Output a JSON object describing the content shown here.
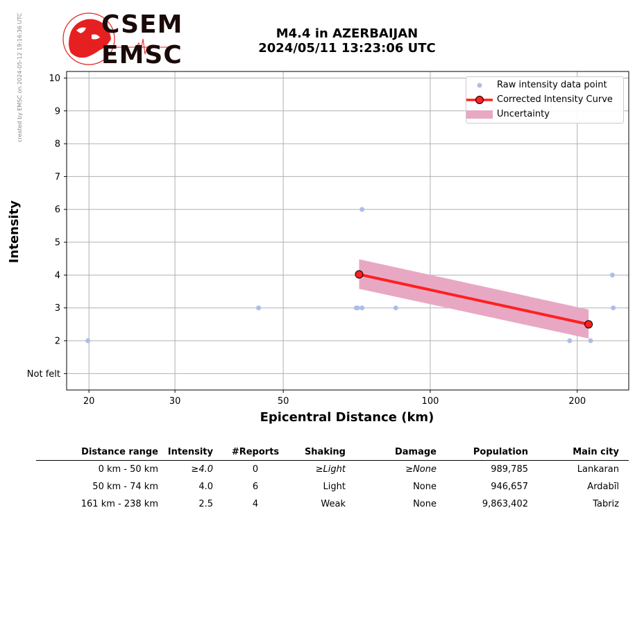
{
  "created_note": "created by EMSC on 2024-05-12 19:16:36 UTC",
  "logo": {
    "line1": "CSEM",
    "line2": "EMSC"
  },
  "title": {
    "line1": "M4.4 in AZERBAIJAN",
    "line2": "2024/05/11 13:23:06 UTC"
  },
  "legend": {
    "raw": "Raw intensity data point",
    "curve": "Corrected Intensity Curve",
    "uncertainty": "Uncertainty"
  },
  "colors": {
    "raw_point": "#aebde8",
    "curve": "#ff2020",
    "curve_marker_edge": "#000000",
    "uncertainty": "#e8a8c4",
    "grid": "#b0b0b0"
  },
  "chart_data": {
    "type": "scatter",
    "xlabel": "Epicentral Distance (km)",
    "ylabel": "Intensity",
    "x_scale": "log",
    "xlim": [
      18,
      255
    ],
    "ylim": [
      0.5,
      10.2
    ],
    "x_ticks": [
      20,
      30,
      50,
      100,
      200
    ],
    "x_tick_labels": [
      "20",
      "30",
      "50",
      "100",
      "200"
    ],
    "y_ticks": [
      1,
      2,
      3,
      4,
      5,
      6,
      7,
      8,
      9,
      10
    ],
    "y_tick_labels": [
      "Not felt",
      "2",
      "3",
      "4",
      "5",
      "6",
      "7",
      "8",
      "9",
      "10"
    ],
    "grid": true,
    "legend_position": "top-right",
    "raw_points": [
      {
        "x": 19.9,
        "y": 2
      },
      {
        "x": 44.5,
        "y": 3
      },
      {
        "x": 70.5,
        "y": 3
      },
      {
        "x": 71.0,
        "y": 3
      },
      {
        "x": 72.5,
        "y": 3
      },
      {
        "x": 72.5,
        "y": 6
      },
      {
        "x": 85.0,
        "y": 3
      },
      {
        "x": 193.0,
        "y": 2
      },
      {
        "x": 213.0,
        "y": 2
      },
      {
        "x": 237.0,
        "y": 3
      },
      {
        "x": 236.0,
        "y": 4
      }
    ],
    "curve": [
      {
        "x": 71.5,
        "y": 4.02
      },
      {
        "x": 211.0,
        "y": 2.5
      }
    ],
    "uncertainty": {
      "x": [
        71.5,
        211.0
      ],
      "upper": [
        4.48,
        2.95
      ],
      "lower": [
        3.58,
        2.07
      ]
    }
  },
  "table": {
    "headers": [
      "Distance range",
      "Intensity",
      "#Reports",
      "Shaking",
      "Damage",
      "Population",
      "Main city"
    ],
    "rows": [
      {
        "range": "0 km -   50 km",
        "intensity": "≥4.0",
        "reports": "0",
        "shaking": "≥Light",
        "damage": "≥None",
        "population": "989,785",
        "city": "Lankaran",
        "italic": true
      },
      {
        "range": "50 km -   74 km",
        "intensity": "4.0",
        "reports": "6",
        "shaking": "Light",
        "damage": "None",
        "population": "946,657",
        "city": "Ardabīl",
        "italic": false
      },
      {
        "range": "161 km -  238 km",
        "intensity": "2.5",
        "reports": "4",
        "shaking": "Weak",
        "damage": "None",
        "population": "9,863,402",
        "city": "Tabriz",
        "italic": false
      }
    ]
  }
}
